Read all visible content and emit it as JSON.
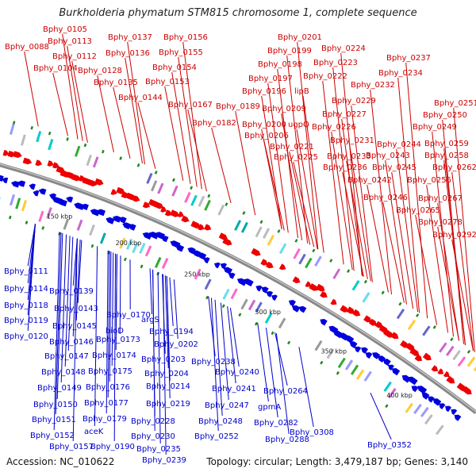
{
  "title": "Burkholderia phymatum STM815 chromosome 1, complete sequence",
  "footer": {
    "accession": "Accession: NC_010622",
    "summary": "Topology: circular; Length: 3,479,187 bp; Genes: 3,140"
  },
  "colors": {
    "forward_strand": "#ee0000",
    "reverse_strand": "#0000dd",
    "top_label": "#cc0000",
    "bottom_label": "#0000cc",
    "backbone": "#888888"
  },
  "kbp_ticks": [
    "150 kbp",
    "200 kbp",
    "250 kbp",
    "300 kbp",
    "350 kbp",
    "400 kbp"
  ],
  "top_labels": [
    "Bphy_0088",
    "Bphy_0105",
    "Bphy_0113",
    "Bphy_0112",
    "Bphy_0104",
    "Bphy_0128",
    "Bphy_0137",
    "Bphy_0136",
    "Bphy_0135",
    "Bphy_0156",
    "Bphy_0155",
    "Bphy_0154",
    "Bphy_0153",
    "Bphy_0144",
    "Bphy_0167",
    "Bphy_0182",
    "Bphy_0189",
    "Bphy_0201",
    "Bphy_0199",
    "Bphy_0198",
    "Bphy_0197",
    "Bphy_0196",
    "lipB",
    "Bphy_0209",
    "Bphy_0200",
    "ugpQ",
    "Bphy_0206",
    "Bphy_0221",
    "Bphy_0225",
    "Bphy_0224",
    "Bphy_0223",
    "Bphy_0222",
    "Bphy_0232",
    "Bphy_0229",
    "Bphy_0227",
    "Bphy_0226",
    "Bphy_0231",
    "Bphy_0233",
    "Bphy_0236",
    "Bphy_0237",
    "Bphy_0234",
    "Bphy_0251",
    "Bphy_0250",
    "Bphy_0249",
    "Bphy_0244",
    "Bphy_0259",
    "Bphy_0243",
    "Bphy_0258",
    "Bphy_0245",
    "Bphy_0262",
    "Bphy_0242",
    "Bphy_0256",
    "Bphy_0246",
    "Bphy_0267",
    "Bphy_0265",
    "Bphy_0278",
    "Bphy_0292"
  ],
  "bottom_labels": [
    "Bphy_0111",
    "Bphy_0114",
    "Bphy_0118",
    "Bphy_0119",
    "Bphy_0120",
    "Bphy_0139",
    "Bphy_0143",
    "Bphy_0145",
    "Bphy_0146",
    "Bphy_0147",
    "Bphy_0148",
    "Bphy_0149",
    "Bphy_0150",
    "Bphy_0151",
    "Bphy_0152",
    "Bphy_0157",
    "Bphy_0170",
    "bioD",
    "Bphy_0173",
    "Bphy_0174",
    "Bphy_0175",
    "Bphy_0176",
    "Bphy_0177",
    "Bphy_0179",
    "aceK",
    "Bphy_0190",
    "argS",
    "Bphy_0194",
    "Bphy_0202",
    "Bphy_0203",
    "Bphy_0204",
    "Bphy_0214",
    "Bphy_0219",
    "Bphy_0228",
    "Bphy_0230",
    "Bphy_0235",
    "Bphy_0239",
    "Bphy_0238",
    "Bphy_0240",
    "Bphy_0241",
    "Bphy_0247",
    "Bphy_0248",
    "Bphy_0252",
    "Bphy_0264",
    "gpmA",
    "Bphy_0282",
    "Bphy_0288",
    "Bphy_0308",
    "Bphy_0352"
  ]
}
